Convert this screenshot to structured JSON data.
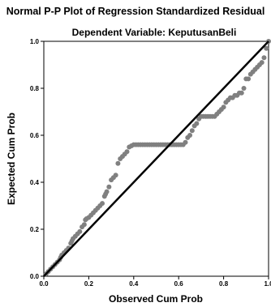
{
  "chart_data": {
    "type": "scatter",
    "title": "Normal P-P Plot of Regression Standardized Residual",
    "subtitle": "Dependent Variable: KeputusanBeli",
    "xlabel": "Observed Cum Prob",
    "ylabel": "Expected Cum Prob",
    "xlim": [
      0.0,
      1.0
    ],
    "ylim": [
      0.0,
      1.0
    ],
    "x_ticks": [
      "0.0",
      "0.2",
      "0.4",
      "0.6",
      "0.8",
      "1.0"
    ],
    "y_ticks": [
      "0.0",
      "0.2",
      "0.4",
      "0.6",
      "0.8",
      "1.0"
    ],
    "grid": false,
    "reference_line": {
      "from": [
        0.0,
        0.0
      ],
      "to": [
        1.0,
        1.0
      ]
    },
    "colors": {
      "points": "#808080",
      "line": "#000000",
      "frame": "#000000",
      "background": "#ffffff"
    },
    "points": [
      [
        0.01,
        0.01
      ],
      [
        0.02,
        0.02
      ],
      [
        0.03,
        0.03
      ],
      [
        0.04,
        0.04
      ],
      [
        0.05,
        0.05
      ],
      [
        0.06,
        0.06
      ],
      [
        0.07,
        0.07
      ],
      [
        0.075,
        0.08
      ],
      [
        0.08,
        0.09
      ],
      [
        0.09,
        0.1
      ],
      [
        0.1,
        0.11
      ],
      [
        0.11,
        0.12
      ],
      [
        0.12,
        0.14
      ],
      [
        0.125,
        0.15
      ],
      [
        0.13,
        0.16
      ],
      [
        0.14,
        0.17
      ],
      [
        0.15,
        0.18
      ],
      [
        0.16,
        0.19
      ],
      [
        0.17,
        0.21
      ],
      [
        0.18,
        0.22
      ],
      [
        0.185,
        0.24
      ],
      [
        0.19,
        0.245
      ],
      [
        0.2,
        0.25
      ],
      [
        0.21,
        0.26
      ],
      [
        0.22,
        0.27
      ],
      [
        0.23,
        0.28
      ],
      [
        0.24,
        0.29
      ],
      [
        0.25,
        0.3
      ],
      [
        0.26,
        0.31
      ],
      [
        0.27,
        0.34
      ],
      [
        0.275,
        0.35
      ],
      [
        0.28,
        0.36
      ],
      [
        0.29,
        0.38
      ],
      [
        0.3,
        0.41
      ],
      [
        0.31,
        0.42
      ],
      [
        0.32,
        0.43
      ],
      [
        0.33,
        0.48
      ],
      [
        0.34,
        0.5
      ],
      [
        0.35,
        0.51
      ],
      [
        0.36,
        0.52
      ],
      [
        0.37,
        0.53
      ],
      [
        0.38,
        0.55
      ],
      [
        0.39,
        0.555
      ],
      [
        0.4,
        0.56
      ],
      [
        0.41,
        0.56
      ],
      [
        0.42,
        0.56
      ],
      [
        0.43,
        0.56
      ],
      [
        0.44,
        0.56
      ],
      [
        0.45,
        0.56
      ],
      [
        0.46,
        0.56
      ],
      [
        0.47,
        0.56
      ],
      [
        0.48,
        0.56
      ],
      [
        0.49,
        0.56
      ],
      [
        0.5,
        0.56
      ],
      [
        0.51,
        0.56
      ],
      [
        0.52,
        0.56
      ],
      [
        0.53,
        0.56
      ],
      [
        0.54,
        0.56
      ],
      [
        0.55,
        0.56
      ],
      [
        0.56,
        0.56
      ],
      [
        0.57,
        0.56
      ],
      [
        0.58,
        0.56
      ],
      [
        0.59,
        0.56
      ],
      [
        0.6,
        0.56
      ],
      [
        0.61,
        0.56
      ],
      [
        0.62,
        0.56
      ],
      [
        0.63,
        0.57
      ],
      [
        0.64,
        0.59
      ],
      [
        0.65,
        0.6
      ],
      [
        0.66,
        0.62
      ],
      [
        0.67,
        0.64
      ],
      [
        0.68,
        0.65
      ],
      [
        0.69,
        0.67
      ],
      [
        0.7,
        0.68
      ],
      [
        0.71,
        0.68
      ],
      [
        0.72,
        0.68
      ],
      [
        0.73,
        0.68
      ],
      [
        0.74,
        0.68
      ],
      [
        0.75,
        0.68
      ],
      [
        0.76,
        0.68
      ],
      [
        0.77,
        0.69
      ],
      [
        0.78,
        0.7
      ],
      [
        0.79,
        0.71
      ],
      [
        0.8,
        0.72
      ],
      [
        0.81,
        0.74
      ],
      [
        0.82,
        0.75
      ],
      [
        0.83,
        0.76
      ],
      [
        0.84,
        0.76
      ],
      [
        0.85,
        0.77
      ],
      [
        0.86,
        0.77
      ],
      [
        0.87,
        0.78
      ],
      [
        0.88,
        0.78
      ],
      [
        0.89,
        0.8
      ],
      [
        0.9,
        0.84
      ],
      [
        0.91,
        0.84
      ],
      [
        0.92,
        0.86
      ],
      [
        0.93,
        0.87
      ],
      [
        0.94,
        0.88
      ],
      [
        0.95,
        0.89
      ],
      [
        0.96,
        0.9
      ],
      [
        0.97,
        0.91
      ],
      [
        0.98,
        0.93
      ],
      [
        0.99,
        0.97
      ],
      [
        1.0,
        1.0
      ]
    ]
  }
}
